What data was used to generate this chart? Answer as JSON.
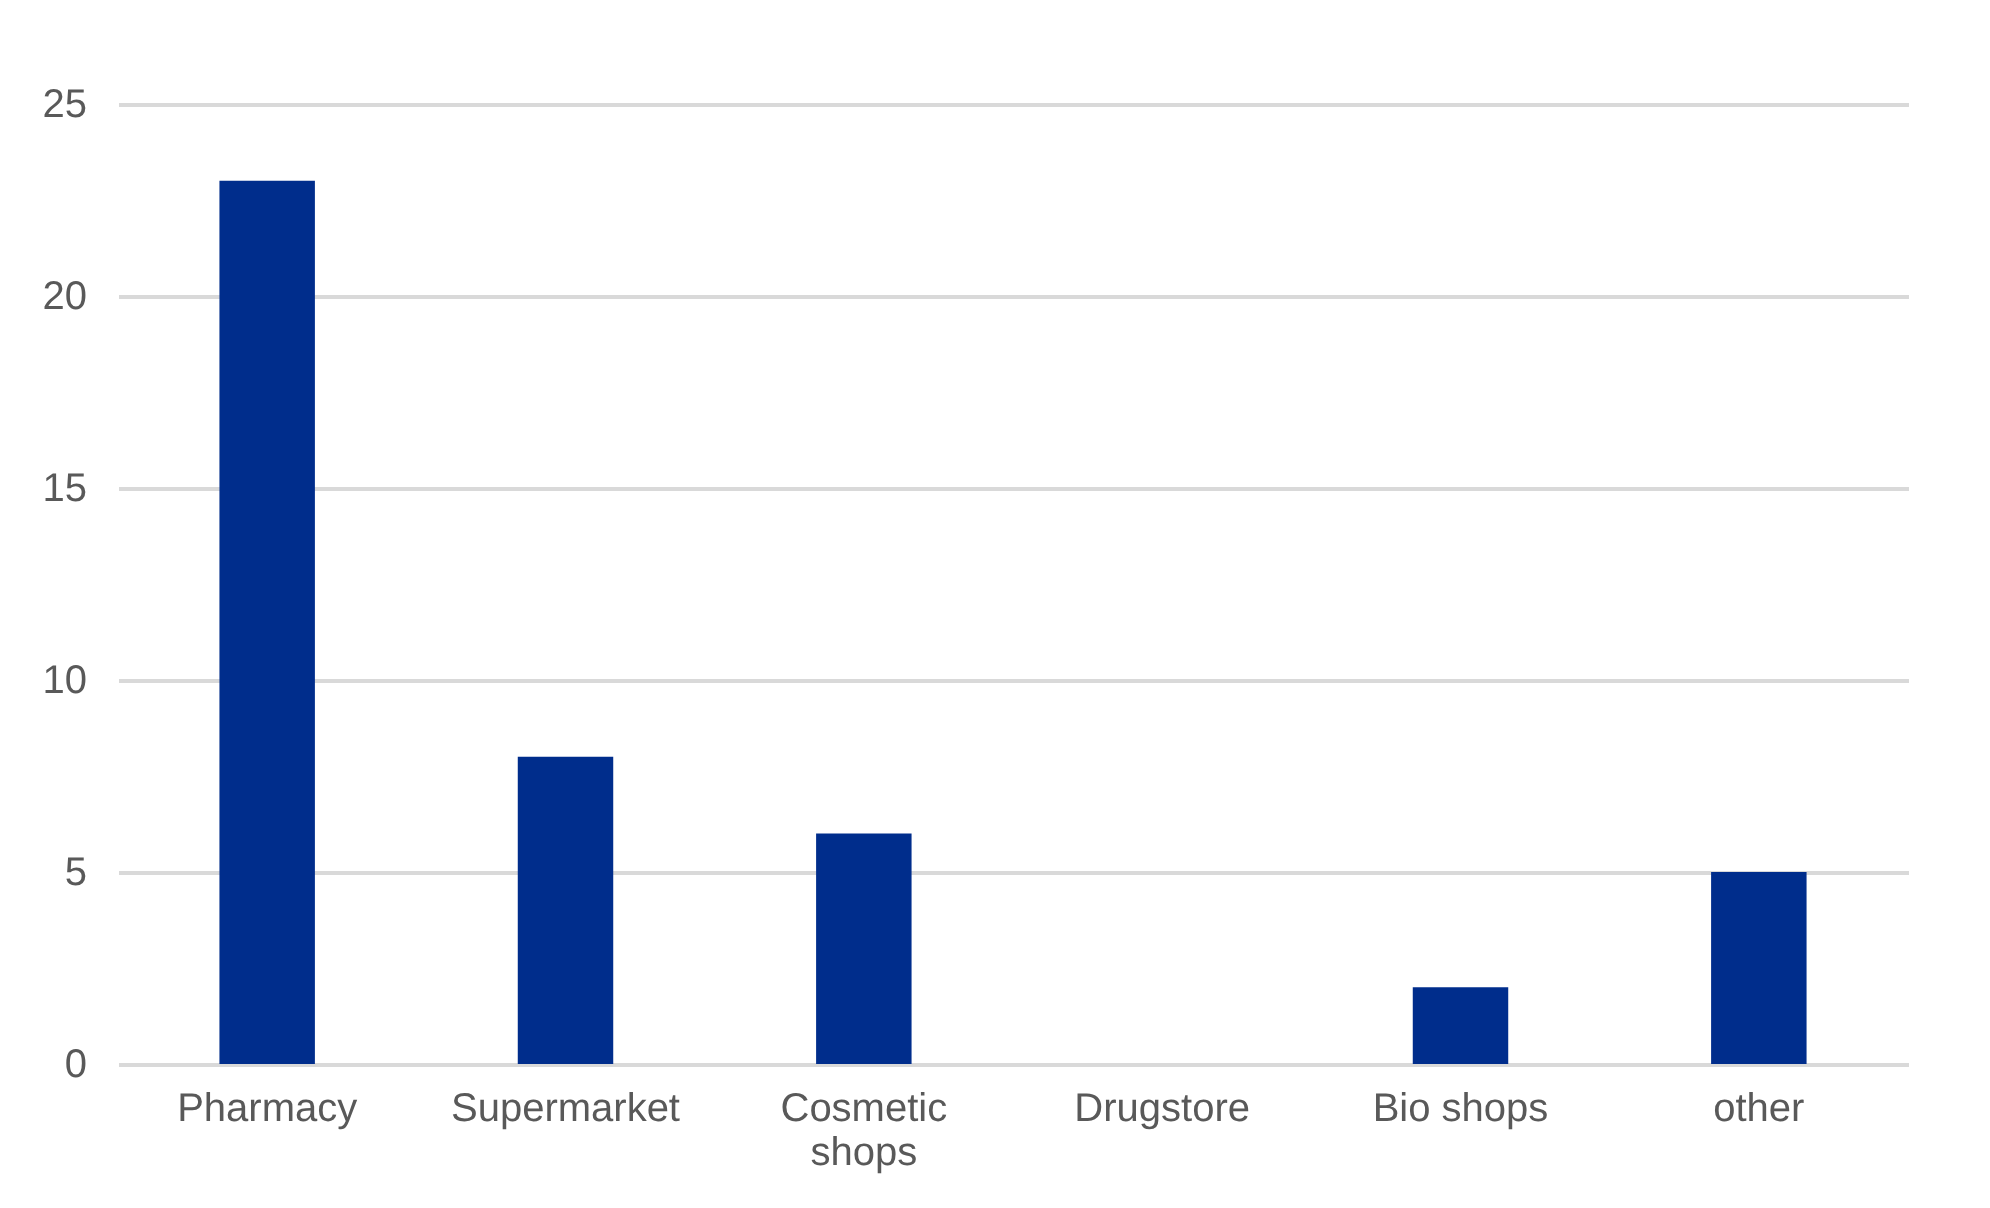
{
  "chart_data": {
    "type": "bar",
    "categories": [
      "Pharmacy",
      "Supermarket",
      "Cosmetic shops",
      "Drugstore",
      "Bio shops",
      "other"
    ],
    "values": [
      23,
      8,
      6,
      0,
      2,
      5
    ],
    "color": "#002d8c",
    "ylim": [
      0,
      25
    ],
    "yticks": [
      0,
      5,
      10,
      15,
      20,
      25
    ],
    "grid": "y"
  }
}
